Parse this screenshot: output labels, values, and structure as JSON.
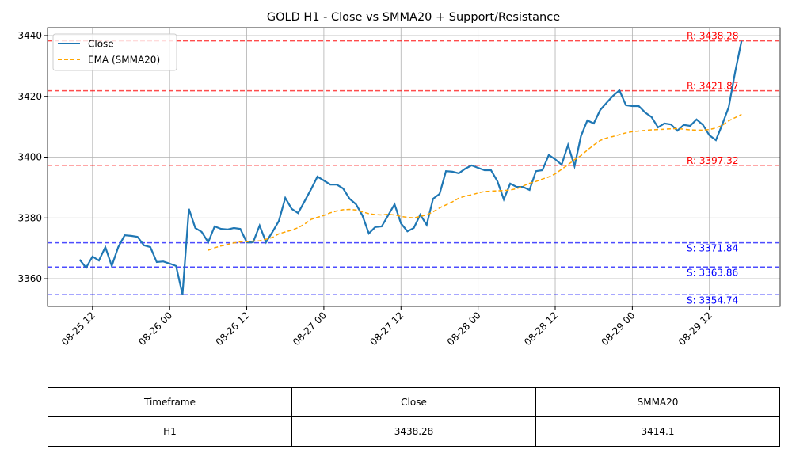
{
  "chart_data": {
    "type": "line",
    "title": "GOLD H1 - Close vs SMMA20 + Support/Resistance",
    "x": [
      "08-25 10",
      "08-25 11",
      "08-25 12",
      "08-25 13",
      "08-25 14",
      "08-25 15",
      "08-25 16",
      "08-25 17",
      "08-25 18",
      "08-25 19",
      "08-25 20",
      "08-25 21",
      "08-25 22",
      "08-25 23",
      "08-26 00",
      "08-26 01",
      "08-26 02",
      "08-26 03",
      "08-26 04",
      "08-26 05",
      "08-26 06",
      "08-26 07",
      "08-26 08",
      "08-26 09",
      "08-26 10",
      "08-26 11",
      "08-26 12",
      "08-26 13",
      "08-26 14",
      "08-26 15",
      "08-26 16",
      "08-26 17",
      "08-26 18",
      "08-26 19",
      "08-26 20",
      "08-26 21",
      "08-26 22",
      "08-26 23",
      "08-27 00",
      "08-27 01",
      "08-27 02",
      "08-27 03",
      "08-27 04",
      "08-27 05",
      "08-27 06",
      "08-27 07",
      "08-27 08",
      "08-27 09",
      "08-27 10",
      "08-27 11",
      "08-27 12",
      "08-27 13",
      "08-27 14",
      "08-27 15",
      "08-27 16",
      "08-27 17",
      "08-27 18",
      "08-27 19",
      "08-27 20",
      "08-27 21",
      "08-27 22",
      "08-27 23",
      "08-28 00",
      "08-28 01",
      "08-28 02",
      "08-28 03",
      "08-28 04",
      "08-28 05",
      "08-28 06",
      "08-28 07",
      "08-28 08",
      "08-28 09",
      "08-28 10",
      "08-28 11",
      "08-28 12",
      "08-28 13",
      "08-28 14",
      "08-28 15",
      "08-28 16",
      "08-28 17",
      "08-28 18",
      "08-28 19",
      "08-28 20",
      "08-28 21",
      "08-28 22",
      "08-28 23",
      "08-29 00",
      "08-29 01",
      "08-29 02",
      "08-29 03",
      "08-29 04",
      "08-29 05",
      "08-29 06",
      "08-29 07",
      "08-29 08",
      "08-29 09",
      "08-29 10",
      "08-29 11",
      "08-29 12",
      "08-29 13",
      "08-29 14",
      "08-29 15",
      "08-29 16",
      "08-29 17"
    ],
    "series": [
      {
        "name": "Close",
        "color": "#1f77b4",
        "style": "solid",
        "values": [
          3366.3,
          3363.6,
          3367.3,
          3366,
          3370.4,
          3364.2,
          3370.4,
          3374.3,
          3374.1,
          3373.8,
          3371,
          3370.4,
          3365.5,
          3365.7,
          3365,
          3364.2,
          3354.8,
          3383,
          3376.7,
          3375.4,
          3372,
          3377.2,
          3376.4,
          3376.2,
          3376.7,
          3376.4,
          3372,
          3372,
          3377.5,
          3372,
          3375.4,
          3379,
          3386.6,
          3383,
          3381.6,
          3385.5,
          3389.4,
          3393.6,
          3392.3,
          3391,
          3391,
          3389.7,
          3386.3,
          3384.5,
          3380.8,
          3374.9,
          3377,
          3377.2,
          3380.8,
          3384.5,
          3378.2,
          3375.6,
          3376.7,
          3381.1,
          3377.7,
          3386.3,
          3387.9,
          3395.4,
          3395.2,
          3394.7,
          3396.2,
          3397.3,
          3396.5,
          3395.7,
          3395.7,
          3392.1,
          3386.1,
          3391.3,
          3390.2,
          3390.2,
          3389.2,
          3395.4,
          3395.7,
          3400.7,
          3399.3,
          3397.5,
          3404,
          3397,
          3406.9,
          3412.1,
          3411.1,
          3415.5,
          3417.9,
          3420.2,
          3422,
          3417.1,
          3416.8,
          3416.8,
          3414.7,
          3413.2,
          3409.8,
          3411.1,
          3410.8,
          3408.7,
          3410.6,
          3410.3,
          3412.4,
          3410.6,
          3407.2,
          3405.6,
          3410.8,
          3416.5,
          3428,
          3438.28
        ]
      },
      {
        "name": "EMA (SMMA20)",
        "color": "#ffa500",
        "style": "dashed",
        "values": [
          null,
          null,
          null,
          null,
          null,
          null,
          null,
          null,
          null,
          null,
          null,
          null,
          null,
          null,
          null,
          null,
          null,
          null,
          null,
          null,
          3369.4,
          3370.2,
          3370.8,
          3371.3,
          3371.8,
          3372.1,
          3372.2,
          3372.4,
          3372.5,
          3373,
          3373.6,
          3374.8,
          3375.4,
          3376,
          3376.8,
          3378,
          3379.5,
          3380.2,
          3380.8,
          3381.7,
          3382.3,
          3382.7,
          3382.8,
          3382.6,
          3382,
          3381.4,
          3381.1,
          3381,
          3381.2,
          3381,
          3380.5,
          3380.2,
          3380,
          3380.5,
          3381,
          3382,
          3383.3,
          3384.3,
          3385.3,
          3386.5,
          3387.2,
          3387.6,
          3388.2,
          3388.7,
          3388.8,
          3388.9,
          3389,
          3389.2,
          3389.6,
          3390.5,
          3391.4,
          3392,
          3392.8,
          3393.5,
          3394.5,
          3396,
          3397.5,
          3399.2,
          3400.5,
          3402.3,
          3404,
          3405.5,
          3406.3,
          3406.8,
          3407.4,
          3408,
          3408.4,
          3408.6,
          3408.8,
          3409,
          3409.1,
          3409.2,
          3409.3,
          3409.4,
          3409.2,
          3409,
          3408.9,
          3408.9,
          3409.1,
          3409.6,
          3410.5,
          3412,
          3413,
          3414.1
        ]
      }
    ],
    "resistance": [
      {
        "value": 3438.28,
        "label": "R: 3438.28",
        "color": "red"
      },
      {
        "value": 3421.87,
        "label": "R: 3421.87",
        "color": "red"
      },
      {
        "value": 3397.32,
        "label": "R: 3397.32",
        "color": "red"
      }
    ],
    "support": [
      {
        "value": 3371.84,
        "label": "S: 3371.84",
        "color": "blue"
      },
      {
        "value": 3363.86,
        "label": "S: 3363.86",
        "color": "blue"
      },
      {
        "value": 3354.74,
        "label": "S: 3354.74",
        "color": "blue"
      }
    ],
    "xlim": [
      "08-25 05",
      "08-29 23"
    ],
    "xticks": [
      "08-25 12",
      "08-26 00",
      "08-26 12",
      "08-27 00",
      "08-27 12",
      "08-28 00",
      "08-28 12",
      "08-29 00",
      "08-29 12"
    ],
    "ylim": [
      3350.9,
      3442.6
    ],
    "yticks": [
      3360,
      3380,
      3400,
      3420,
      3440
    ],
    "grid": true,
    "legend": "upper-left"
  },
  "table": {
    "columns": [
      "Timeframe",
      "Close",
      "SMMA20"
    ],
    "rows": [
      [
        "H1",
        "3438.28",
        "3414.1"
      ]
    ]
  }
}
